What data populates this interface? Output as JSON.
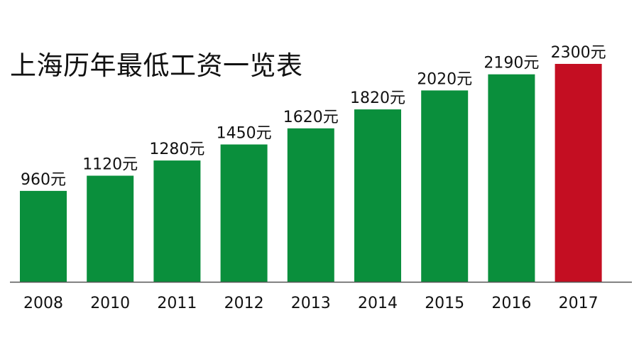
{
  "chart_data": {
    "type": "bar",
    "title": "上海历年最低工资一览表",
    "categories": [
      "2008",
      "2010",
      "2011",
      "2012",
      "2013",
      "2014",
      "2015",
      "2016",
      "2017"
    ],
    "values": [
      960,
      1120,
      1280,
      1450,
      1620,
      1820,
      2020,
      2190,
      2300
    ],
    "data_labels": [
      "960元",
      "1120元",
      "1280元",
      "1450元",
      "1620元",
      "1820元",
      "2020元",
      "2190元",
      "2300元"
    ],
    "unit": "元",
    "xlabel": "",
    "ylabel": "",
    "ylim": [
      0,
      2300
    ],
    "grid": false,
    "legend": "none",
    "colors": {
      "default_bar": "#0a8f3c",
      "highlight_bar": "#c40e22",
      "axis": "#555555",
      "text": "#111111"
    },
    "highlight_category": "2017"
  }
}
